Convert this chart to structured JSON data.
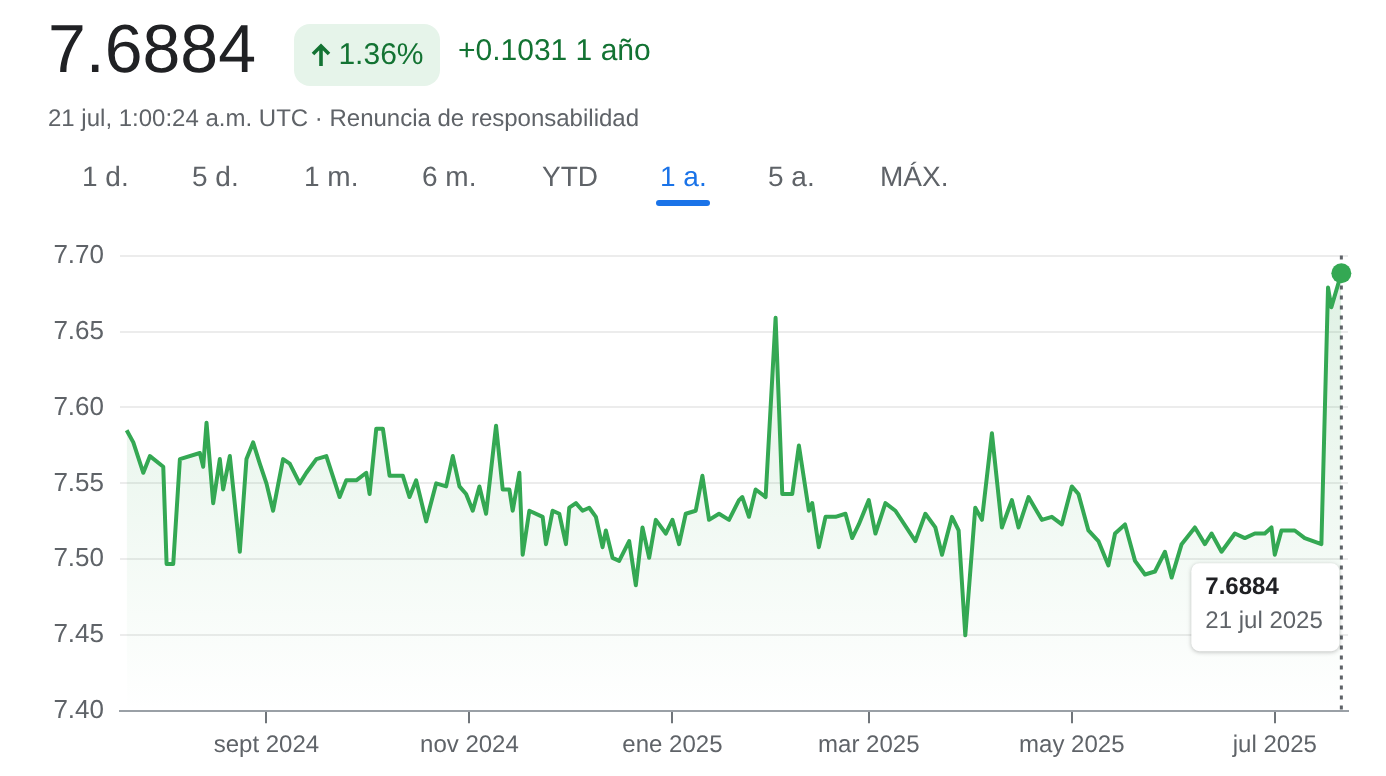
{
  "chart_data": {
    "type": "area",
    "title": "7.6884",
    "subtitle": "21 jul, 1:00:24 a.m. UTC · Renuncia de responsabilidad",
    "annotations": [
      "1.36%",
      "+0.1031 1 año",
      "1 d.",
      "5 d.",
      "1 m.",
      "6 m.",
      "YTD",
      "1 a.",
      "5 a.",
      "MÁX.",
      "7.6884",
      "21 jul 2025"
    ],
    "color": "#34a853",
    "x": [
      "2024-07-21",
      "2024-07-23",
      "2024-07-26",
      "2024-07-28",
      "2024-08-01",
      "2024-08-02",
      "2024-08-04",
      "2024-08-06",
      "2024-08-12",
      "2024-08-13",
      "2024-08-14",
      "2024-08-16",
      "2024-08-18",
      "2024-08-19",
      "2024-08-21",
      "2024-08-24",
      "2024-08-26",
      "2024-08-28",
      "2024-08-30",
      "2024-09-01",
      "2024-09-03",
      "2024-09-06",
      "2024-09-08",
      "2024-09-11",
      "2024-09-13",
      "2024-09-16",
      "2024-09-19",
      "2024-09-23",
      "2024-09-25",
      "2024-09-28",
      "2024-10-01",
      "2024-10-02",
      "2024-10-04",
      "2024-10-06",
      "2024-10-08",
      "2024-10-12",
      "2024-10-14",
      "2024-10-16",
      "2024-10-19",
      "2024-10-22",
      "2024-10-25",
      "2024-10-27",
      "2024-10-29",
      "2024-10-31",
      "2024-11-02",
      "2024-11-04",
      "2024-11-06",
      "2024-11-09",
      "2024-11-11",
      "2024-11-13",
      "2024-11-14",
      "2024-11-16",
      "2024-11-17",
      "2024-11-19",
      "2024-11-23",
      "2024-11-24",
      "2024-11-26",
      "2024-11-28",
      "2024-11-30",
      "2024-12-01",
      "2024-12-03",
      "2024-12-05",
      "2024-12-07",
      "2024-12-09",
      "2024-12-11",
      "2024-12-12",
      "2024-12-14",
      "2024-12-16",
      "2024-12-19",
      "2024-12-21",
      "2024-12-23",
      "2024-12-25",
      "2024-12-27",
      "2024-12-30",
      "2025-01-01",
      "2025-01-03",
      "2025-01-05",
      "2025-01-08",
      "2025-01-10",
      "2025-01-12",
      "2025-01-15",
      "2025-01-18",
      "2025-01-21",
      "2025-01-22",
      "2025-01-24",
      "2025-01-26",
      "2025-01-29",
      "2025-02-01",
      "2025-02-03",
      "2025-02-06",
      "2025-02-08",
      "2025-02-11",
      "2025-02-12",
      "2025-02-14",
      "2025-02-16",
      "2025-02-19",
      "2025-02-22",
      "2025-02-24",
      "2025-02-26",
      "2025-03-01",
      "2025-03-03",
      "2025-03-06",
      "2025-03-09",
      "2025-03-15",
      "2025-03-18",
      "2025-03-21",
      "2025-03-23",
      "2025-03-26",
      "2025-03-28",
      "2025-03-30",
      "2025-04-02",
      "2025-04-04",
      "2025-04-07",
      "2025-04-10",
      "2025-04-13",
      "2025-04-15",
      "2025-04-18",
      "2025-04-22",
      "2025-04-25",
      "2025-04-28",
      "2025-05-01",
      "2025-05-03",
      "2025-05-06",
      "2025-05-09",
      "2025-05-12",
      "2025-05-14",
      "2025-05-17",
      "2025-05-20",
      "2025-05-23",
      "2025-05-26",
      "2025-05-29",
      "2025-05-31",
      "2025-06-03",
      "2025-06-07",
      "2025-06-10",
      "2025-06-12",
      "2025-06-15",
      "2025-06-19",
      "2025-06-22",
      "2025-06-25",
      "2025-06-28",
      "2025-06-30",
      "2025-07-01",
      "2025-07-03",
      "2025-07-07",
      "2025-07-10",
      "2025-07-15",
      "2025-07-17",
      "2025-07-18",
      "2025-07-21"
    ],
    "values": [
      7.585,
      7.577,
      7.557,
      7.568,
      7.561,
      7.497,
      7.497,
      7.566,
      7.57,
      7.561,
      7.59,
      7.537,
      7.566,
      7.546,
      7.568,
      7.505,
      7.566,
      7.577,
      7.563,
      7.55,
      7.532,
      7.566,
      7.563,
      7.55,
      7.557,
      7.566,
      7.568,
      7.541,
      7.552,
      7.552,
      7.557,
      7.543,
      7.586,
      7.586,
      7.555,
      7.555,
      7.541,
      7.552,
      7.525,
      7.55,
      7.548,
      7.568,
      7.548,
      7.543,
      7.532,
      7.548,
      7.53,
      7.588,
      7.546,
      7.546,
      7.532,
      7.557,
      7.503,
      7.532,
      7.528,
      7.51,
      7.532,
      7.53,
      7.51,
      7.534,
      7.537,
      7.532,
      7.534,
      7.528,
      7.508,
      7.519,
      7.501,
      7.499,
      7.512,
      7.483,
      7.521,
      7.501,
      7.526,
      7.517,
      7.526,
      7.51,
      7.53,
      7.532,
      7.555,
      7.526,
      7.53,
      7.526,
      7.539,
      7.541,
      7.528,
      7.546,
      7.541,
      7.659,
      7.543,
      7.543,
      7.575,
      7.532,
      7.537,
      7.508,
      7.528,
      7.528,
      7.53,
      7.514,
      7.523,
      7.539,
      7.517,
      7.537,
      7.532,
      7.512,
      7.53,
      7.521,
      7.503,
      7.528,
      7.519,
      7.45,
      7.534,
      7.526,
      7.583,
      7.521,
      7.539,
      7.521,
      7.541,
      7.526,
      7.528,
      7.523,
      7.548,
      7.543,
      7.519,
      7.512,
      7.496,
      7.517,
      7.523,
      7.499,
      7.49,
      7.492,
      7.505,
      7.488,
      7.51,
      7.521,
      7.51,
      7.517,
      7.505,
      7.517,
      7.514,
      7.517,
      7.517,
      7.521,
      7.503,
      7.519,
      7.519,
      7.514,
      7.51,
      7.679,
      7.666,
      7.6884
    ],
    "xlim": [
      "2024-07-19",
      "2025-07-23"
    ],
    "xticks": [
      {
        "value": "2024-09-01",
        "label": "sept 2024"
      },
      {
        "value": "2024-11-01",
        "label": "nov 2024"
      },
      {
        "value": "2025-01-01",
        "label": "ene 2025"
      },
      {
        "value": "2025-03-01",
        "label": "mar 2025"
      },
      {
        "value": "2025-05-01",
        "label": "may 2025"
      },
      {
        "value": "2025-07-01",
        "label": "jul 2025"
      }
    ],
    "ylim": [
      7.4,
      7.7
    ],
    "yticks": [
      {
        "value": 7.4,
        "label": "7.40"
      },
      {
        "value": 7.45,
        "label": "7.45"
      },
      {
        "value": 7.5,
        "label": "7.50"
      },
      {
        "value": 7.55,
        "label": "7.55"
      },
      {
        "value": 7.6,
        "label": "7.60"
      },
      {
        "value": 7.65,
        "label": "7.65"
      },
      {
        "value": 7.7,
        "label": "7.70"
      }
    ],
    "grid": "y",
    "ref_lines": [
      {
        "axis": "x",
        "value": "2025-07-21",
        "line_style": "dotted",
        "color": "#5f6368"
      }
    ]
  }
}
